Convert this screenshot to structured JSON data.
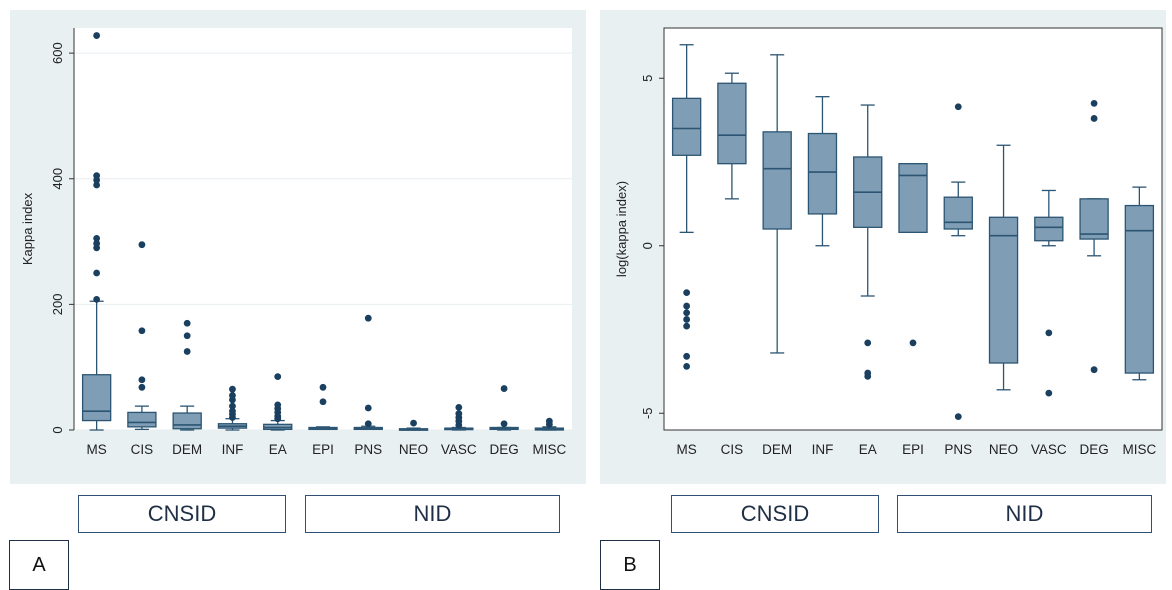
{
  "colors": {
    "box": "#7f9db4",
    "edge": "#2c5573",
    "dot": "#1a3f5f",
    "panel_bg": "#e9f0f2",
    "plot_bg": "#ffffff",
    "grid": "#e8eef0"
  },
  "groups": {
    "left": "CNSID",
    "right": "NID"
  },
  "panels": [
    {
      "label": "A",
      "group_left": "CNSID",
      "group_right": "NID"
    },
    {
      "label": "B",
      "group_left": "CNSID",
      "group_right": "NID"
    }
  ],
  "chart_data": [
    {
      "type": "box",
      "ylabel": "Kappa index",
      "ylim": [
        0,
        640
      ],
      "yticks": [
        "0",
        "200",
        "400",
        "600"
      ],
      "ytick_values": [
        0,
        200,
        400,
        600
      ],
      "grid": true,
      "categories": [
        "MS",
        "CIS",
        "DEM",
        "INF",
        "EA",
        "EPI",
        "PNS",
        "NEO",
        "VASC",
        "DEG",
        "MISC"
      ],
      "boxes": [
        {
          "q1": 15,
          "median": 30,
          "q3": 88,
          "wlow": 0,
          "whigh": 205,
          "outliers": [
            208,
            250,
            290,
            297,
            305,
            390,
            398,
            405,
            628
          ]
        },
        {
          "q1": 5,
          "median": 12,
          "q3": 28,
          "wlow": 1,
          "whigh": 38,
          "outliers": [
            68,
            80,
            158,
            295
          ]
        },
        {
          "q1": 2,
          "median": 8,
          "q3": 27,
          "wlow": 0,
          "whigh": 38,
          "outliers": [
            125,
            150,
            170
          ]
        },
        {
          "q1": 3,
          "median": 6,
          "q3": 10,
          "wlow": 0,
          "whigh": 18,
          "outliers": [
            20,
            25,
            30,
            38,
            48,
            55,
            65
          ]
        },
        {
          "q1": 1,
          "median": 4,
          "q3": 9,
          "wlow": 0,
          "whigh": 15,
          "outliers": [
            18,
            22,
            28,
            34,
            40,
            85
          ]
        },
        {
          "q1": 1,
          "median": 3,
          "q3": 4,
          "wlow": 1,
          "whigh": 5,
          "outliers": [
            45,
            68
          ]
        },
        {
          "q1": 1,
          "median": 2,
          "q3": 4,
          "wlow": 1,
          "whigh": 6,
          "outliers": [
            10,
            35,
            178
          ]
        },
        {
          "q1": 0,
          "median": 1,
          "q3": 2,
          "wlow": 0,
          "whigh": 3,
          "outliers": [
            11
          ]
        },
        {
          "q1": 1,
          "median": 2,
          "q3": 3,
          "wlow": 0,
          "whigh": 4,
          "outliers": [
            8,
            14,
            20,
            26,
            36
          ]
        },
        {
          "q1": 1,
          "median": 2,
          "q3": 4,
          "wlow": 0,
          "whigh": 4,
          "outliers": [
            10,
            66
          ]
        },
        {
          "q1": 0,
          "median": 2,
          "q3": 3,
          "wlow": 0,
          "whigh": 5,
          "outliers": [
            9,
            14
          ]
        }
      ]
    },
    {
      "type": "box",
      "ylabel": "log(kappa index)",
      "ylim": [
        -5.5,
        6.5
      ],
      "yticks": [
        "-5",
        "0",
        "5"
      ],
      "ytick_values": [
        -5,
        0,
        5
      ],
      "grid": false,
      "categories": [
        "MS",
        "CIS",
        "DEM",
        "INF",
        "EA",
        "EPI",
        "PNS",
        "NEO",
        "VASC",
        "DEG",
        "MISC"
      ],
      "boxes": [
        {
          "q1": 2.7,
          "median": 3.5,
          "q3": 4.4,
          "wlow": 0.4,
          "whigh": 6.0,
          "outliers": [
            -1.4,
            -1.8,
            -2.0,
            -2.2,
            -2.4,
            -3.3,
            -3.6
          ]
        },
        {
          "q1": 2.45,
          "median": 3.3,
          "q3": 4.85,
          "wlow": 1.4,
          "whigh": 5.15,
          "outliers": []
        },
        {
          "q1": 0.5,
          "median": 2.3,
          "q3": 3.4,
          "wlow": -3.2,
          "whigh": 5.7,
          "outliers": []
        },
        {
          "q1": 0.95,
          "median": 2.2,
          "q3": 3.35,
          "wlow": 0.0,
          "whigh": 4.45,
          "outliers": []
        },
        {
          "q1": 0.55,
          "median": 1.6,
          "q3": 2.65,
          "wlow": -1.5,
          "whigh": 4.2,
          "outliers": [
            -2.9,
            -3.8,
            -3.9
          ]
        },
        {
          "q1": 0.4,
          "median": 2.1,
          "q3": 2.45,
          "wlow": 0.4,
          "whigh": 2.45,
          "outliers": [
            -2.9
          ]
        },
        {
          "q1": 0.5,
          "median": 0.7,
          "q3": 1.45,
          "wlow": 0.3,
          "whigh": 1.9,
          "outliers": [
            4.15,
            -5.1
          ]
        },
        {
          "q1": -3.5,
          "median": 0.3,
          "q3": 0.85,
          "wlow": -4.3,
          "whigh": 3.0,
          "outliers": []
        },
        {
          "q1": 0.15,
          "median": 0.55,
          "q3": 0.85,
          "wlow": 0.0,
          "whigh": 1.65,
          "outliers": [
            -2.6,
            -4.4
          ]
        },
        {
          "q1": 0.2,
          "median": 0.35,
          "q3": 1.4,
          "wlow": -0.3,
          "whigh": 1.4,
          "outliers": [
            4.25,
            3.8,
            -3.7
          ]
        },
        {
          "q1": -3.8,
          "median": 0.45,
          "q3": 1.2,
          "wlow": -4.0,
          "whigh": 1.75,
          "outliers": []
        }
      ]
    }
  ]
}
